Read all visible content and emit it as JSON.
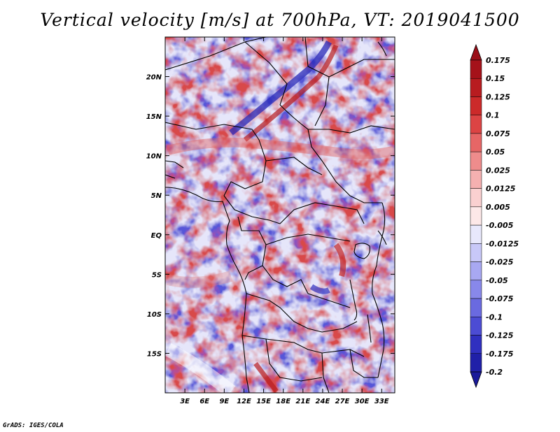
{
  "title": "Vertical velocity [m/s] at 700hPa, VT: 2019041500",
  "credit": "GrADS: IGES/COLA",
  "map": {
    "lon_range": [
      0,
      35
    ],
    "lat_range": [
      -20,
      25
    ],
    "x_ticks": [
      {
        "value": 3,
        "label": "3E"
      },
      {
        "value": 6,
        "label": "6E"
      },
      {
        "value": 9,
        "label": "9E"
      },
      {
        "value": 12,
        "label": "12E"
      },
      {
        "value": 15,
        "label": "15E"
      },
      {
        "value": 18,
        "label": "18E"
      },
      {
        "value": 21,
        "label": "21E"
      },
      {
        "value": 24,
        "label": "24E"
      },
      {
        "value": 27,
        "label": "27E"
      },
      {
        "value": 30,
        "label": "30E"
      },
      {
        "value": 33,
        "label": "33E"
      }
    ],
    "y_ticks": [
      {
        "value": 20,
        "label": "20N"
      },
      {
        "value": 15,
        "label": "15N"
      },
      {
        "value": 10,
        "label": "10N"
      },
      {
        "value": 5,
        "label": "5N"
      },
      {
        "value": 0,
        "label": "EQ"
      },
      {
        "value": -5,
        "label": "5S"
      },
      {
        "value": -10,
        "label": "10S"
      },
      {
        "value": -15,
        "label": "15S"
      }
    ]
  },
  "colorbar": {
    "levels": [
      {
        "label": "0.175",
        "color": "#a5121a"
      },
      {
        "label": "0.15",
        "color": "#b81c20"
      },
      {
        "label": "0.125",
        "color": "#cc2a2a"
      },
      {
        "label": "0.1",
        "color": "#dc4444"
      },
      {
        "label": "0.075",
        "color": "#e66666"
      },
      {
        "label": "0.05",
        "color": "#ee8c8c"
      },
      {
        "label": "0.025",
        "color": "#f5b0b0"
      },
      {
        "label": "0.0125",
        "color": "#fad0d0"
      },
      {
        "label": "0.005",
        "color": "#fde8e8"
      },
      {
        "label": "-0.005",
        "color": "#ffffff"
      },
      {
        "label": "-0.0125",
        "color": "#e8e8fc"
      },
      {
        "label": "-0.025",
        "color": "#c8c8f8"
      },
      {
        "label": "-0.05",
        "color": "#a8a8f2"
      },
      {
        "label": "-0.075",
        "color": "#8888ea"
      },
      {
        "label": "-0.1",
        "color": "#6a6ae0"
      },
      {
        "label": "-0.125",
        "color": "#4c4cd4"
      },
      {
        "label": "-0.175",
        "color": "#3030c0"
      },
      {
        "label": "-0.2",
        "color": "#2020a8"
      }
    ],
    "top_color": "#9a0f18",
    "bottom_color": "#1a1a9a"
  }
}
